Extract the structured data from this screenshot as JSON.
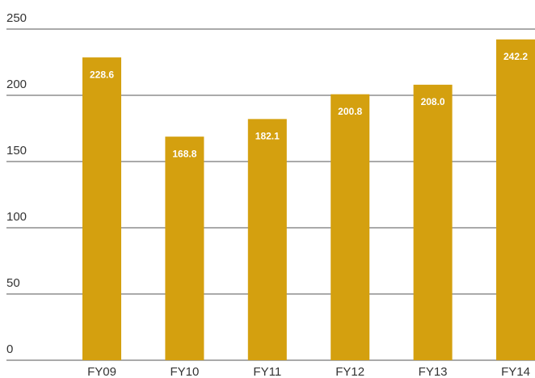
{
  "chart_data": {
    "type": "bar",
    "categories": [
      "FY09",
      "FY10",
      "FY11",
      "FY12",
      "FY13",
      "FY14"
    ],
    "values": [
      228.6,
      168.8,
      182.1,
      200.8,
      208.0,
      242.2
    ],
    "value_labels": [
      "228.6",
      "168.8",
      "182.1",
      "200.8",
      "208.0",
      "242.2"
    ],
    "color": "#d4a00f",
    "ylim": [
      0,
      250
    ],
    "yticks": [
      0,
      50,
      100,
      150,
      200,
      250
    ],
    "grid": true
  }
}
